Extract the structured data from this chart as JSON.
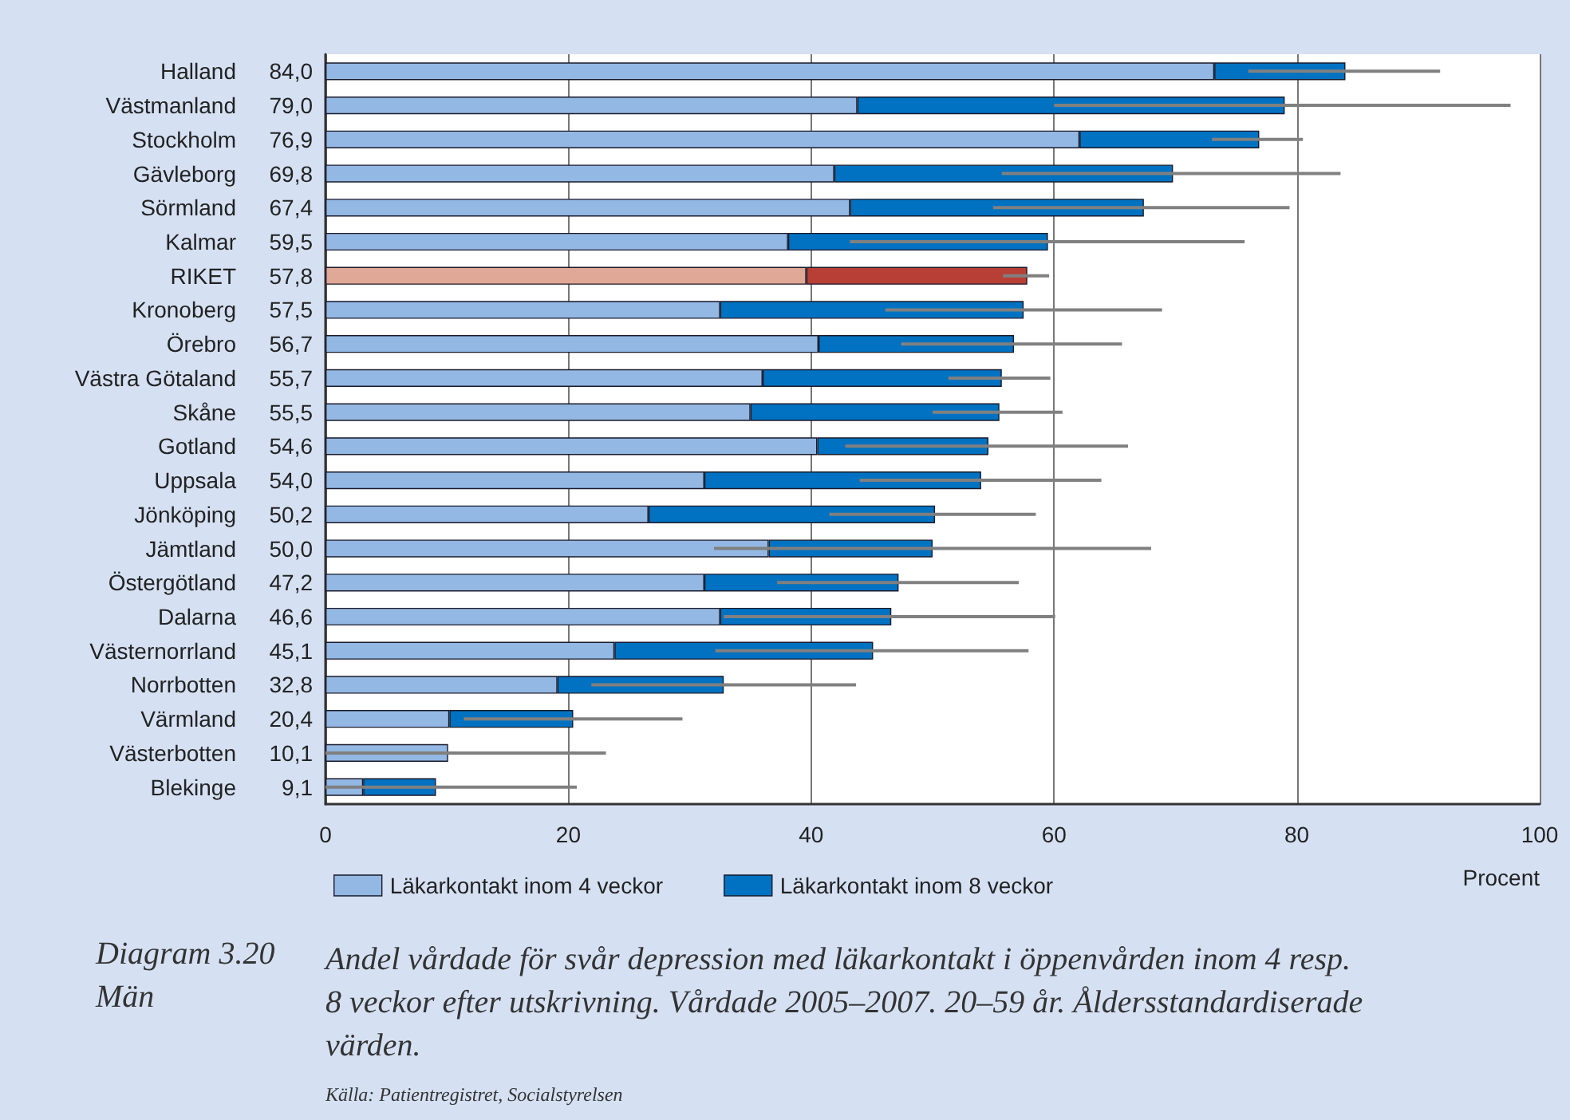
{
  "chart_data": {
    "type": "bar",
    "orientation": "horizontal",
    "stacked": true,
    "title": "Diagram 3.20",
    "subtitle": "Män",
    "xlabel": "Procent",
    "categories": [
      "Halland",
      "Västmanland",
      "Stockholm",
      "Gävleborg",
      "Sörmland",
      "Kalmar",
      "RIKET",
      "Kronoberg",
      "Örebro",
      "Västra Götaland",
      "Skåne",
      "Gotland",
      "Uppsala",
      "Jönköping",
      "Jämtland",
      "Östergötland",
      "Dalarna",
      "Västernorrland",
      "Norrbotten",
      "Värmland",
      "Västerbotten",
      "Blekinge"
    ],
    "series": [
      {
        "name": "Läkarkontakt inom 4 veckor",
        "color": "#93b8e3",
        "colors": [
          "#93b8e3",
          "#93b8e3",
          "#93b8e3",
          "#93b8e3",
          "#93b8e3",
          "#93b8e3",
          "#e0a896",
          "#93b8e3",
          "#93b8e3",
          "#93b8e3",
          "#93b8e3",
          "#93b8e3",
          "#93b8e3",
          "#93b8e3",
          "#93b8e3",
          "#93b8e3",
          "#93b8e3",
          "#93b8e3",
          "#93b8e3",
          "#93b8e3",
          "#93b8e3",
          "#93b8e3"
        ],
        "values": [
          73.2,
          43.8,
          62.1,
          41.9,
          43.2,
          38.1,
          39.6,
          32.5,
          40.6,
          36.0,
          35.0,
          40.5,
          31.2,
          26.6,
          36.5,
          31.2,
          32.5,
          23.8,
          19.1,
          10.2,
          10.1,
          3.1
        ]
      },
      {
        "name": "Läkarkontakt inom 8 veckor",
        "color": "#0072c1",
        "colors": [
          "#0072c1",
          "#0072c1",
          "#0072c1",
          "#0072c1",
          "#0072c1",
          "#0072c1",
          "#b83f35",
          "#0072c1",
          "#0072c1",
          "#0072c1",
          "#0072c1",
          "#0072c1",
          "#0072c1",
          "#0072c1",
          "#0072c1",
          "#0072c1",
          "#0072c1",
          "#0072c1",
          "#0072c1",
          "#0072c1",
          "#0072c1",
          "#0072c1"
        ],
        "values": [
          10.8,
          35.2,
          14.8,
          27.9,
          24.2,
          21.4,
          18.2,
          25.0,
          16.1,
          19.7,
          20.5,
          14.1,
          22.8,
          23.6,
          13.5,
          16.0,
          14.1,
          21.3,
          13.7,
          10.2,
          0.0,
          6.0
        ],
        "errors": [
          [
            76.0,
            91.8
          ],
          [
            60.0,
            97.6
          ],
          [
            73.0,
            80.5
          ],
          [
            55.7,
            83.6
          ],
          [
            55.0,
            79.4
          ],
          [
            43.2,
            75.7
          ],
          [
            55.8,
            59.6
          ],
          [
            46.1,
            68.9
          ],
          [
            47.4,
            65.6
          ],
          [
            51.3,
            59.7
          ],
          [
            50.0,
            60.7
          ],
          [
            42.8,
            66.1
          ],
          [
            44.0,
            63.9
          ],
          [
            41.5,
            58.5
          ],
          [
            32.0,
            68.0
          ],
          [
            37.2,
            57.1
          ],
          [
            32.8,
            60.1
          ],
          [
            32.1,
            57.9
          ],
          [
            21.9,
            43.7
          ],
          [
            11.4,
            29.4
          ],
          [
            0.0,
            23.1
          ],
          [
            0.0,
            20.7
          ]
        ]
      }
    ],
    "totals": [
      "84,0",
      "79,0",
      "76,9",
      "69,8",
      "67,4",
      "59,5",
      "57,8",
      "57,5",
      "56,7",
      "55,7",
      "55,5",
      "54,6",
      "54,0",
      "50,2",
      "50,0",
      "47,2",
      "46,6",
      "45,1",
      "32,8",
      "20,4",
      "10,1",
      "9,1"
    ],
    "xlim": [
      0,
      100
    ],
    "xticks": [
      0,
      20,
      40,
      60,
      80,
      100
    ],
    "grid": "x",
    "legend": "bottom left",
    "annotations": [
      "Andel vårdade för svår depression med läkarkontakt i öppenvården inom 4 resp. 8 veckor efter utskrivning. Vårdade 2005–2007. 20–59 år. Åldersstandardiserade värden.",
      "Källa: Patientregistret, Socialstyrelsen"
    ]
  }
}
